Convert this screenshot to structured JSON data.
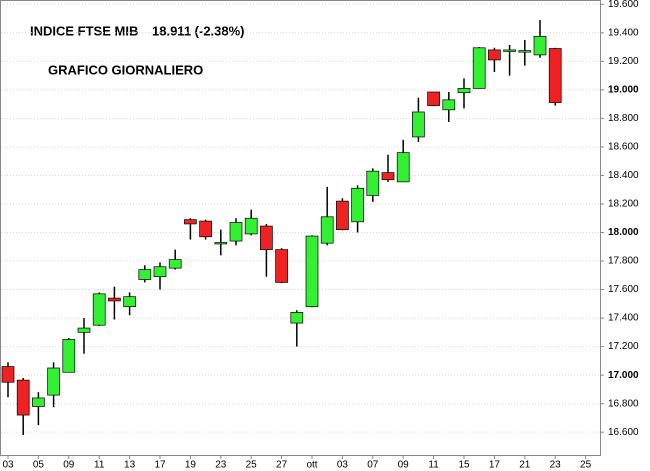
{
  "chart_data": {
    "type": "candlestick",
    "title": "INDICE FTSE MIB",
    "subtitle": "18.911 (-2.38%)",
    "annotation": "GRAFICO GIORNALIERO",
    "categories": [
      "03",
      null,
      "05",
      null,
      "09",
      null,
      "11",
      null,
      "13",
      null,
      "17",
      null,
      "19",
      null,
      "23",
      null,
      "25",
      null,
      "27",
      null,
      "ott",
      null,
      "03",
      null,
      "07",
      null,
      "09",
      null,
      "11",
      null,
      "15",
      null,
      "17",
      null,
      "21",
      null,
      "23",
      null,
      "25"
    ],
    "open": [
      17060,
      16965,
      16780,
      16860,
      17020,
      17300,
      17350,
      17540,
      17480,
      17670,
      17690,
      17750,
      18090,
      18080,
      17920,
      17940,
      17990,
      18045,
      17880,
      17365,
      17480,
      17925,
      18220,
      18075,
      18260,
      18420,
      18355,
      18670,
      18985,
      18860,
      18980,
      19010,
      19280,
      19270,
      19270,
      19245,
      19290,
      null,
      null
    ],
    "high": [
      17090,
      16980,
      16880,
      17090,
      17260,
      17400,
      17580,
      17620,
      17580,
      17770,
      17790,
      17880,
      18100,
      18090,
      18020,
      18100,
      18160,
      18060,
      17890,
      17455,
      17980,
      18320,
      18240,
      18330,
      18450,
      18545,
      18650,
      18945,
      18985,
      18985,
      19080,
      19300,
      19295,
      19315,
      19350,
      19490,
      19295,
      null,
      null
    ],
    "low": [
      16845,
      16580,
      16650,
      16775,
      17020,
      17150,
      17345,
      17390,
      17420,
      17650,
      17600,
      17740,
      17950,
      17950,
      17840,
      17910,
      17980,
      17690,
      17645,
      17200,
      17475,
      17910,
      18015,
      18000,
      18215,
      18355,
      18355,
      18635,
      18885,
      18775,
      18870,
      19010,
      19125,
      19100,
      19170,
      19225,
      18890,
      null,
      null
    ],
    "close": [
      16950,
      16720,
      16840,
      17050,
      17250,
      17330,
      17570,
      17520,
      17550,
      17740,
      17760,
      17810,
      18060,
      17970,
      17930,
      18070,
      18100,
      17880,
      17650,
      17440,
      17975,
      18110,
      18020,
      18310,
      18430,
      18370,
      18560,
      18845,
      18890,
      18930,
      19010,
      19295,
      19210,
      19280,
      19275,
      19375,
      18911,
      null,
      null
    ],
    "up_color": "#33f033",
    "down_color": "#ee2222",
    "ylim": [
      16440,
      19630
    ],
    "yticks": [
      {
        "value": 16600,
        "label": "16.600"
      },
      {
        "value": 16800,
        "label": "16.800"
      },
      {
        "value": 17000,
        "label": "17.000"
      },
      {
        "value": 17200,
        "label": "17.200"
      },
      {
        "value": 17400,
        "label": "17.400"
      },
      {
        "value": 17600,
        "label": "17.600"
      },
      {
        "value": 17800,
        "label": "17.800"
      },
      {
        "value": 18000,
        "label": "18.000"
      },
      {
        "value": 18200,
        "label": "18.200"
      },
      {
        "value": 18400,
        "label": "18.400"
      },
      {
        "value": 18600,
        "label": "18.600"
      },
      {
        "value": 18800,
        "label": "18.800"
      },
      {
        "value": 19000,
        "label": "19.000"
      },
      {
        "value": 19200,
        "label": "19.200"
      },
      {
        "value": 19400,
        "label": "19.400"
      },
      {
        "value": 19600,
        "label": "19.600"
      }
    ],
    "grid": true
  }
}
